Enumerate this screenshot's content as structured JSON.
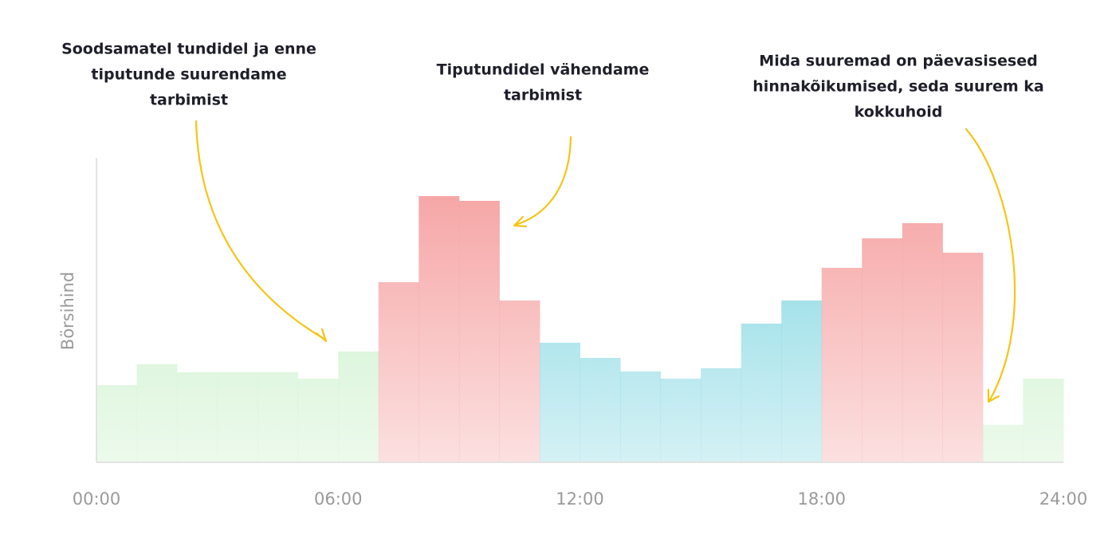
{
  "chart_data": {
    "type": "histogram",
    "y_label": "Börsihind",
    "bins": [
      0,
      1,
      2,
      3,
      4,
      5,
      6,
      7,
      8,
      9,
      10,
      11,
      12,
      13,
      14,
      15,
      16,
      17,
      18,
      19,
      20,
      21,
      22,
      23,
      24
    ],
    "values": [
      97,
      123,
      113,
      113,
      113,
      105,
      139,
      226,
      334,
      328,
      203,
      150,
      131,
      114,
      105,
      118,
      174,
      203,
      244,
      281,
      300,
      263,
      47,
      105
    ],
    "colors": [
      "#c9f0c9",
      "#c9f0c9",
      "#c9f0c9",
      "#c9f0c9",
      "#c9f0c9",
      "#c9f0c9",
      "#c9f0c9",
      "#f6a6a6",
      "#f6a6a6",
      "#f6a6a6",
      "#f6a6a6",
      "#86d8e3",
      "#86d8e3",
      "#86d8e3",
      "#86d8e3",
      "#86d8e3",
      "#86d8e3",
      "#86d8e3",
      "#f6a6a6",
      "#f6a6a6",
      "#f6a6a6",
      "#f6a6a6",
      "#c9f0c9",
      "#c9f0c9"
    ],
    "xlim": [
      0,
      24
    ],
    "ylim": [
      0,
      382
    ],
    "xticks": [
      {
        "value": 0,
        "label": "00:00"
      },
      {
        "value": 6,
        "label": "06:00"
      },
      {
        "value": 12,
        "label": "12:00"
      },
      {
        "value": 18,
        "label": "18:00"
      },
      {
        "value": 24,
        "label": "24:00"
      }
    ],
    "annotations": [
      [
        "Soodsamatel tundidel ja enne",
        "tiputunde suurendame",
        "tarbimist"
      ],
      [
        "Tiputundidel vähendame",
        "tarbimist"
      ],
      [
        "Mida suuremad on päevasisesed",
        "hinnakõikumised, seda suurem ka",
        "kokkuhoid"
      ]
    ]
  }
}
